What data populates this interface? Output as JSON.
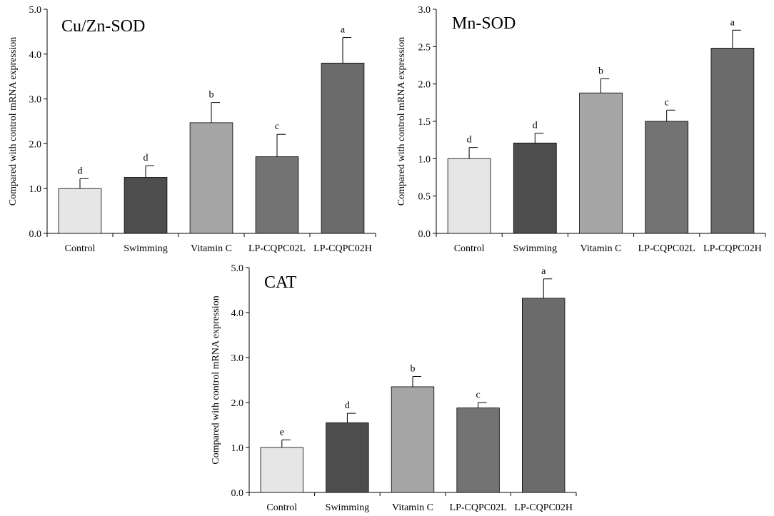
{
  "chart_data": [
    {
      "type": "bar",
      "title": "Cu/Zn-SOD",
      "ylabel": "Compared with control mRNA expression",
      "xlabel": "",
      "ylim": [
        0,
        5
      ],
      "yticks": [
        "0.0",
        "1.0",
        "2.0",
        "3.0",
        "4.0",
        "5.0"
      ],
      "categories": [
        "Control",
        "Swimming",
        "Vitamin C",
        "LP-CQPC02L",
        "LP-CQPC02H"
      ],
      "values": [
        1.0,
        1.25,
        2.47,
        1.71,
        3.8
      ],
      "errors": [
        0.22,
        0.26,
        0.45,
        0.5,
        0.57
      ],
      "letters": [
        "d",
        "d",
        "b",
        "c",
        "a"
      ],
      "colors": [
        "#e6e6e6",
        "#4d4d4d",
        "#a6a6a6",
        "#737373",
        "#6b6b6b"
      ]
    },
    {
      "type": "bar",
      "title": "Mn-SOD",
      "ylabel": "Compared with control mRNA expression",
      "xlabel": "",
      "ylim": [
        0,
        3
      ],
      "yticks": [
        "0.0",
        "0.5",
        "1.0",
        "1.5",
        "2.0",
        "2.5",
        "3.0"
      ],
      "categories": [
        "Control",
        "Swimming",
        "Vitamin C",
        "LP-CQPC02L",
        "LP-CQPC02H"
      ],
      "values": [
        1.0,
        1.21,
        1.88,
        1.5,
        2.48
      ],
      "errors": [
        0.15,
        0.13,
        0.19,
        0.15,
        0.24
      ],
      "letters": [
        "d",
        "d",
        "b",
        "c",
        "a"
      ],
      "colors": [
        "#e6e6e6",
        "#4d4d4d",
        "#a6a6a6",
        "#737373",
        "#6b6b6b"
      ]
    },
    {
      "type": "bar",
      "title": "CAT",
      "ylabel": "Compared with control mRNA expression",
      "xlabel": "",
      "ylim": [
        0,
        5
      ],
      "yticks": [
        "0.0",
        "1.0",
        "2.0",
        "3.0",
        "4.0",
        "5.0"
      ],
      "categories": [
        "Control",
        "Swimming",
        "Vitamin C",
        "LP-CQPC02L",
        "LP-CQPC02H"
      ],
      "values": [
        1.0,
        1.55,
        2.35,
        1.88,
        4.32
      ],
      "errors": [
        0.17,
        0.21,
        0.23,
        0.12,
        0.43
      ],
      "letters": [
        "e",
        "d",
        "b",
        "c",
        "a"
      ],
      "colors": [
        "#e6e6e6",
        "#4d4d4d",
        "#a6a6a6",
        "#737373",
        "#6b6b6b"
      ]
    }
  ]
}
